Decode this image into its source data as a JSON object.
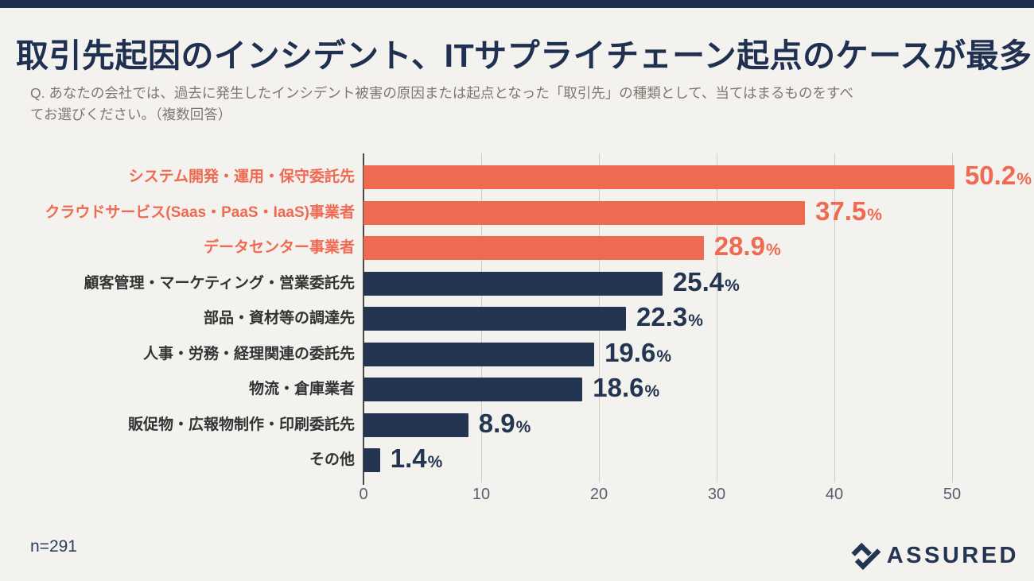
{
  "slide": {
    "title": "取引先起因のインシデント、ITサプライチェーン起点のケースが最多",
    "question_line1": "Q. あなたの会社では、過去に発生したインシデント被害の原因または起点となった「取引先」の種類として、当てはまるものをすべ",
    "question_line2": "てお選びください。（複数回答）",
    "sample_size": "n=291",
    "brand": "ASSURED"
  },
  "colors": {
    "orange": "#EF6A51",
    "navy": "#233551",
    "background": "#F4F2EF",
    "top_band": "#1F2E4D",
    "title_text": "#1F3050",
    "question_text": "#7E786F",
    "category_dark": "#333333",
    "gridline": "#CCCBC8",
    "axis_line": "#4A4A47",
    "tick_text": "#55606E"
  },
  "chart_data": {
    "type": "bar",
    "orientation": "horizontal",
    "title": "",
    "xlabel": "",
    "ylabel": "",
    "unit": "%",
    "xlim": [
      0,
      52
    ],
    "xticks": [
      0,
      10,
      20,
      30,
      40,
      50
    ],
    "grid": true,
    "legend": false,
    "categories": [
      "システム開発・運用・保守委託先",
      "クラウドサービス(Saas・PaaS・IaaS)事業者",
      "データセンター事業者",
      "顧客管理・マーケティング・営業委託先",
      "部品・資材等の調達先",
      "人事・労務・経理関連の委託先",
      "物流・倉庫業者",
      "販促物・広報物制作・印刷委託先",
      "その他"
    ],
    "values": [
      50.2,
      37.5,
      28.9,
      25.4,
      22.3,
      19.6,
      18.6,
      8.9,
      1.4
    ],
    "value_labels": [
      "50.2",
      "37.5",
      "28.9",
      "25.4",
      "22.3",
      "19.6",
      "18.6",
      "8.9",
      "1.4"
    ],
    "bar_colors": [
      "orange",
      "orange",
      "orange",
      "navy",
      "navy",
      "navy",
      "navy",
      "navy",
      "navy"
    ]
  }
}
